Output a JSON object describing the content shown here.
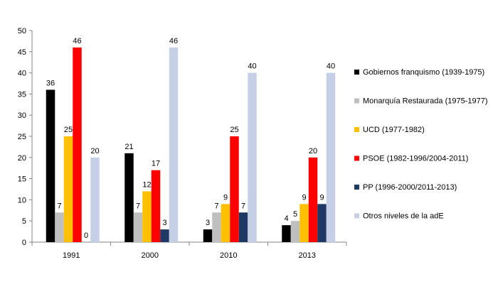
{
  "chart_data": {
    "type": "bar",
    "title": "",
    "xlabel": "",
    "ylabel": "",
    "ylim": [
      0,
      50
    ],
    "yticks": [
      0,
      5,
      10,
      15,
      20,
      25,
      30,
      35,
      40,
      45,
      50
    ],
    "grid": false,
    "legend_position": "right",
    "categories": [
      "1991",
      "2000",
      "2010",
      "2013"
    ],
    "series": [
      {
        "name": "Gobiernos franquismo (1939-1975)",
        "color": "#000000",
        "values": [
          36,
          21,
          3,
          4
        ]
      },
      {
        "name": "Monarquía Restaurada (1975-1977)",
        "color": "#BFBFBF",
        "values": [
          7,
          7,
          7,
          5
        ]
      },
      {
        "name": "UCD (1977-1982)",
        "color": "#FFC000",
        "values": [
          25,
          12,
          9,
          9
        ]
      },
      {
        "name": "PSOE (1982-1996/2004-2011)",
        "color": "#FF0000",
        "values": [
          46,
          17,
          25,
          20
        ]
      },
      {
        "name": "PP (1996-2000/2011-2013)",
        "color": "#1F3864",
        "values": [
          0,
          3,
          7,
          9
        ]
      },
      {
        "name": "Otros niveles de la adE",
        "color": "#C5D0E6",
        "values": [
          20,
          46,
          40,
          40
        ]
      }
    ]
  }
}
